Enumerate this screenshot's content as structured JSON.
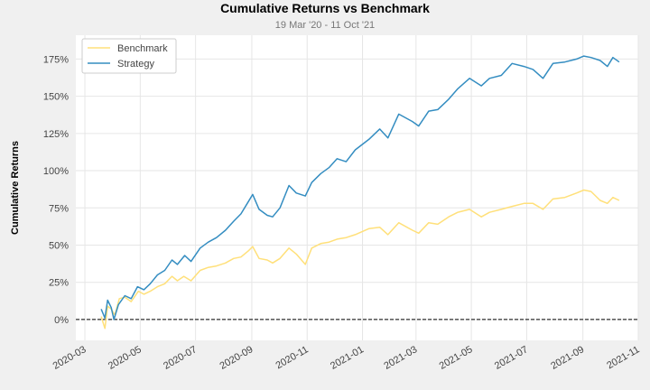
{
  "chart_data": {
    "type": "line",
    "title": "Cumulative Returns vs Benchmark",
    "subtitle": "19 Mar '20 - 11 Oct '21",
    "xlabel": "",
    "ylabel": "Cumulative Returns",
    "ylim": [
      -0.14,
      1.91
    ],
    "xlim": [
      "2020-02-20",
      "2021-11-01"
    ],
    "y_ticks": [
      0,
      0.25,
      0.5,
      0.75,
      1.0,
      1.25,
      1.5,
      1.75
    ],
    "y_tick_labels": [
      "0%",
      "25%",
      "50%",
      "75%",
      "100%",
      "125%",
      "150%",
      "175%"
    ],
    "x_ticks": [
      "2020-03-01",
      "2020-05-01",
      "2020-07-01",
      "2020-09-01",
      "2020-11-01",
      "2021-01-01",
      "2021-03-01",
      "2021-05-01",
      "2021-07-01",
      "2021-09-01",
      "2021-11-01"
    ],
    "x_tick_labels": [
      "2020-03",
      "2020-05",
      "2020-07",
      "2020-09",
      "2020-11",
      "2021-01",
      "2021-03",
      "2021-05",
      "2021-07",
      "2021-09",
      "2021-11"
    ],
    "grid": true,
    "legend_position": "top-left",
    "baseline": 0,
    "series": [
      {
        "name": "Benchmark",
        "color": "#ffe07a",
        "points": [
          [
            "2020-03-19",
            0.02
          ],
          [
            "2020-03-23",
            -0.06
          ],
          [
            "2020-03-26",
            0.09
          ],
          [
            "2020-03-30",
            0.07
          ],
          [
            "2020-04-03",
            0.03
          ],
          [
            "2020-04-08",
            0.14
          ],
          [
            "2020-04-14",
            0.15
          ],
          [
            "2020-04-21",
            0.12
          ],
          [
            "2020-04-29",
            0.19
          ],
          [
            "2020-05-05",
            0.17
          ],
          [
            "2020-05-12",
            0.19
          ],
          [
            "2020-05-20",
            0.22
          ],
          [
            "2020-05-28",
            0.24
          ],
          [
            "2020-06-05",
            0.29
          ],
          [
            "2020-06-11",
            0.26
          ],
          [
            "2020-06-18",
            0.29
          ],
          [
            "2020-06-26",
            0.26
          ],
          [
            "2020-07-06",
            0.33
          ],
          [
            "2020-07-15",
            0.35
          ],
          [
            "2020-07-24",
            0.36
          ],
          [
            "2020-08-03",
            0.38
          ],
          [
            "2020-08-12",
            0.41
          ],
          [
            "2020-08-20",
            0.42
          ],
          [
            "2020-08-28",
            0.46
          ],
          [
            "2020-09-02",
            0.49
          ],
          [
            "2020-09-09",
            0.41
          ],
          [
            "2020-09-18",
            0.4
          ],
          [
            "2020-09-24",
            0.38
          ],
          [
            "2020-10-02",
            0.41
          ],
          [
            "2020-10-12",
            0.48
          ],
          [
            "2020-10-20",
            0.44
          ],
          [
            "2020-10-30",
            0.37
          ],
          [
            "2020-11-06",
            0.48
          ],
          [
            "2020-11-16",
            0.51
          ],
          [
            "2020-11-25",
            0.52
          ],
          [
            "2020-12-04",
            0.54
          ],
          [
            "2020-12-14",
            0.55
          ],
          [
            "2020-12-24",
            0.57
          ],
          [
            "2021-01-08",
            0.61
          ],
          [
            "2021-01-20",
            0.62
          ],
          [
            "2021-01-29",
            0.57
          ],
          [
            "2021-02-10",
            0.65
          ],
          [
            "2021-02-25",
            0.6
          ],
          [
            "2021-03-04",
            0.58
          ],
          [
            "2021-03-15",
            0.65
          ],
          [
            "2021-03-25",
            0.64
          ],
          [
            "2021-04-06",
            0.69
          ],
          [
            "2021-04-16",
            0.72
          ],
          [
            "2021-04-29",
            0.74
          ],
          [
            "2021-05-12",
            0.69
          ],
          [
            "2021-05-21",
            0.72
          ],
          [
            "2021-06-03",
            0.74
          ],
          [
            "2021-06-15",
            0.76
          ],
          [
            "2021-06-28",
            0.78
          ],
          [
            "2021-07-08",
            0.78
          ],
          [
            "2021-07-19",
            0.74
          ],
          [
            "2021-07-30",
            0.81
          ],
          [
            "2021-08-12",
            0.82
          ],
          [
            "2021-08-25",
            0.85
          ],
          [
            "2021-09-02",
            0.87
          ],
          [
            "2021-09-10",
            0.86
          ],
          [
            "2021-09-20",
            0.8
          ],
          [
            "2021-09-28",
            0.78
          ],
          [
            "2021-10-04",
            0.82
          ],
          [
            "2021-10-11",
            0.8
          ]
        ]
      },
      {
        "name": "Strategy",
        "color": "#348dc1",
        "points": [
          [
            "2020-03-19",
            0.07
          ],
          [
            "2020-03-23",
            0.01
          ],
          [
            "2020-03-26",
            0.13
          ],
          [
            "2020-03-30",
            0.08
          ],
          [
            "2020-04-02",
            0.0
          ],
          [
            "2020-04-07",
            0.1
          ],
          [
            "2020-04-14",
            0.16
          ],
          [
            "2020-04-21",
            0.14
          ],
          [
            "2020-04-28",
            0.22
          ],
          [
            "2020-05-05",
            0.2
          ],
          [
            "2020-05-12",
            0.24
          ],
          [
            "2020-05-20",
            0.3
          ],
          [
            "2020-05-28",
            0.33
          ],
          [
            "2020-06-05",
            0.4
          ],
          [
            "2020-06-11",
            0.37
          ],
          [
            "2020-06-19",
            0.43
          ],
          [
            "2020-06-26",
            0.39
          ],
          [
            "2020-07-06",
            0.48
          ],
          [
            "2020-07-15",
            0.52
          ],
          [
            "2020-07-24",
            0.55
          ],
          [
            "2020-08-03",
            0.6
          ],
          [
            "2020-08-12",
            0.66
          ],
          [
            "2020-08-20",
            0.71
          ],
          [
            "2020-08-28",
            0.79
          ],
          [
            "2020-09-02",
            0.84
          ],
          [
            "2020-09-09",
            0.74
          ],
          [
            "2020-09-18",
            0.7
          ],
          [
            "2020-09-24",
            0.69
          ],
          [
            "2020-10-02",
            0.75
          ],
          [
            "2020-10-12",
            0.9
          ],
          [
            "2020-10-20",
            0.85
          ],
          [
            "2020-10-30",
            0.83
          ],
          [
            "2020-11-06",
            0.92
          ],
          [
            "2020-11-16",
            0.98
          ],
          [
            "2020-11-25",
            1.02
          ],
          [
            "2020-12-04",
            1.08
          ],
          [
            "2020-12-14",
            1.06
          ],
          [
            "2020-12-24",
            1.14
          ],
          [
            "2021-01-08",
            1.21
          ],
          [
            "2021-01-20",
            1.28
          ],
          [
            "2021-01-29",
            1.22
          ],
          [
            "2021-02-10",
            1.38
          ],
          [
            "2021-02-25",
            1.33
          ],
          [
            "2021-03-04",
            1.3
          ],
          [
            "2021-03-15",
            1.4
          ],
          [
            "2021-03-25",
            1.41
          ],
          [
            "2021-04-06",
            1.48
          ],
          [
            "2021-04-16",
            1.55
          ],
          [
            "2021-04-29",
            1.62
          ],
          [
            "2021-05-12",
            1.57
          ],
          [
            "2021-05-21",
            1.62
          ],
          [
            "2021-06-03",
            1.64
          ],
          [
            "2021-06-15",
            1.72
          ],
          [
            "2021-06-28",
            1.7
          ],
          [
            "2021-07-08",
            1.68
          ],
          [
            "2021-07-19",
            1.62
          ],
          [
            "2021-07-30",
            1.72
          ],
          [
            "2021-08-12",
            1.73
          ],
          [
            "2021-08-25",
            1.75
          ],
          [
            "2021-09-02",
            1.77
          ],
          [
            "2021-09-10",
            1.76
          ],
          [
            "2021-09-20",
            1.74
          ],
          [
            "2021-09-28",
            1.7
          ],
          [
            "2021-10-04",
            1.76
          ],
          [
            "2021-10-11",
            1.73
          ]
        ]
      }
    ]
  }
}
